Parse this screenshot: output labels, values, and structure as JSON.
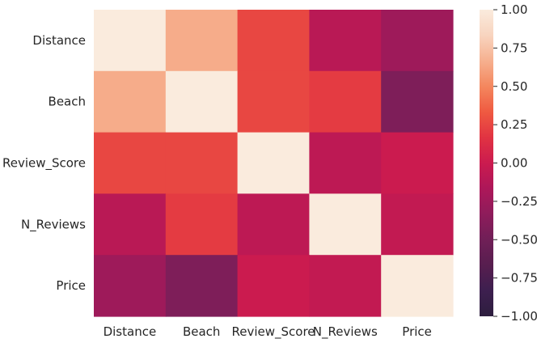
{
  "chart_data": {
    "type": "heatmap",
    "x_categories": [
      "Distance",
      "Beach",
      "Review_Score",
      "N_Reviews",
      "Price"
    ],
    "y_categories": [
      "Distance",
      "Beach",
      "Review_Score",
      "N_Reviews",
      "Price"
    ],
    "values": [
      [
        1.0,
        0.65,
        0.25,
        -0.1,
        -0.25
      ],
      [
        0.65,
        1.0,
        0.25,
        0.2,
        -0.42
      ],
      [
        0.25,
        0.25,
        1.0,
        -0.08,
        0.0
      ],
      [
        -0.1,
        0.2,
        -0.08,
        1.0,
        -0.05
      ],
      [
        -0.25,
        -0.42,
        0.0,
        -0.05,
        1.0
      ]
    ],
    "colorbar": {
      "min": -1.0,
      "max": 1.0,
      "ticks": [
        "1.00",
        "0.75",
        "0.50",
        "0.25",
        "0.00",
        "−0.25",
        "−0.50",
        "−0.75",
        "−1.00"
      ],
      "tick_values": [
        1.0,
        0.75,
        0.5,
        0.25,
        0.0,
        -0.25,
        -0.5,
        -0.75,
        -1.0
      ]
    },
    "colormap_stops": [
      "#2d1e3e",
      "#3d1f4f",
      "#571e4f",
      "#701f57",
      "#8e1c5b",
      "#ad1759",
      "#cb1b4f",
      "#e13342",
      "#ef5a41",
      "#f4875e",
      "#f6b08f",
      "#f8d4bf",
      "#faebdd"
    ],
    "grid": false
  }
}
